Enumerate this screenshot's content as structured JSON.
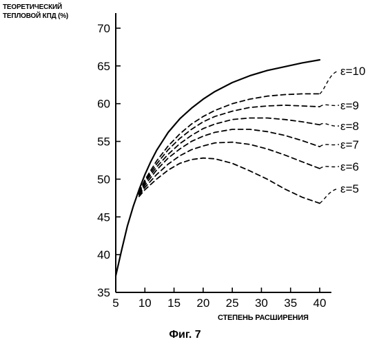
{
  "chart_data": {
    "type": "line",
    "ylabel_lines": [
      "ТЕОРЕТИЧЕСКИЙ",
      "ТЕПЛОВОЙ КПД (%)"
    ],
    "xlabel": "СТЕПЕНЬ РАСШИРЕНИЯ",
    "caption": "Фиг. 7",
    "xlim": [
      5,
      42
    ],
    "ylim": [
      35,
      72
    ],
    "xticks": [
      5,
      10,
      15,
      20,
      25,
      30,
      35,
      40
    ],
    "yticks": [
      35,
      40,
      45,
      50,
      55,
      60,
      65,
      70
    ],
    "series": [
      {
        "style": "solid",
        "x": [
          5,
          6,
          7,
          8,
          9,
          10,
          11,
          12,
          14,
          16,
          18,
          20,
          22,
          25,
          28,
          31,
          34,
          37,
          40
        ],
        "y": [
          37.2,
          40.6,
          43.8,
          46.4,
          48.6,
          50.6,
          52.3,
          53.8,
          56.2,
          58.0,
          59.4,
          60.6,
          61.6,
          62.8,
          63.7,
          64.4,
          64.9,
          65.4,
          65.8
        ]
      },
      {
        "name": "ε=10",
        "style": "dashed",
        "x": [
          9,
          10,
          12,
          14,
          16,
          18,
          20,
          22,
          25,
          28,
          31,
          34,
          37,
          40
        ],
        "y": [
          48.3,
          49.9,
          52.4,
          54.4,
          56.0,
          57.3,
          58.3,
          59.1,
          60.0,
          60.6,
          61.0,
          61.2,
          61.3,
          61.3
        ]
      },
      {
        "name": "ε=9",
        "style": "dashed",
        "x": [
          9,
          10,
          12,
          14,
          16,
          18,
          20,
          22,
          25,
          28,
          31,
          34,
          37,
          40
        ],
        "y": [
          48.2,
          49.7,
          52.0,
          53.9,
          55.4,
          56.6,
          57.6,
          58.3,
          59.0,
          59.5,
          59.7,
          59.8,
          59.7,
          59.6
        ]
      },
      {
        "name": "ε=8",
        "style": "dashed",
        "x": [
          9,
          10,
          12,
          14,
          16,
          18,
          20,
          22,
          25,
          28,
          31,
          34,
          37,
          40
        ],
        "y": [
          48.1,
          49.5,
          51.6,
          53.3,
          54.7,
          55.8,
          56.7,
          57.3,
          57.9,
          58.1,
          58.1,
          57.9,
          57.6,
          57.2
        ]
      },
      {
        "name": "ε=7",
        "style": "dashed",
        "x": [
          9,
          10,
          12,
          14,
          16,
          18,
          20,
          22,
          25,
          28,
          31,
          34,
          37,
          40
        ],
        "y": [
          48.0,
          49.2,
          51.2,
          52.8,
          54.0,
          55.0,
          55.7,
          56.2,
          56.6,
          56.6,
          56.3,
          55.8,
          55.1,
          54.3
        ]
      },
      {
        "name": "ε=6",
        "style": "dashed",
        "x": [
          9,
          10,
          12,
          14,
          16,
          18,
          20,
          22,
          25,
          28,
          31,
          34,
          37,
          40
        ],
        "y": [
          47.9,
          48.9,
          50.6,
          52.0,
          53.1,
          53.9,
          54.4,
          54.8,
          54.9,
          54.6,
          54.0,
          53.2,
          52.3,
          51.4
        ]
      },
      {
        "name": "ε=5",
        "style": "dashed",
        "x": [
          9,
          10,
          12,
          14,
          16,
          18,
          20,
          22,
          25,
          28,
          31,
          34,
          37,
          40
        ],
        "y": [
          47.7,
          48.6,
          50.0,
          51.2,
          52.1,
          52.6,
          52.8,
          52.7,
          52.1,
          51.1,
          50.0,
          48.7,
          47.6,
          46.8
        ]
      }
    ]
  }
}
